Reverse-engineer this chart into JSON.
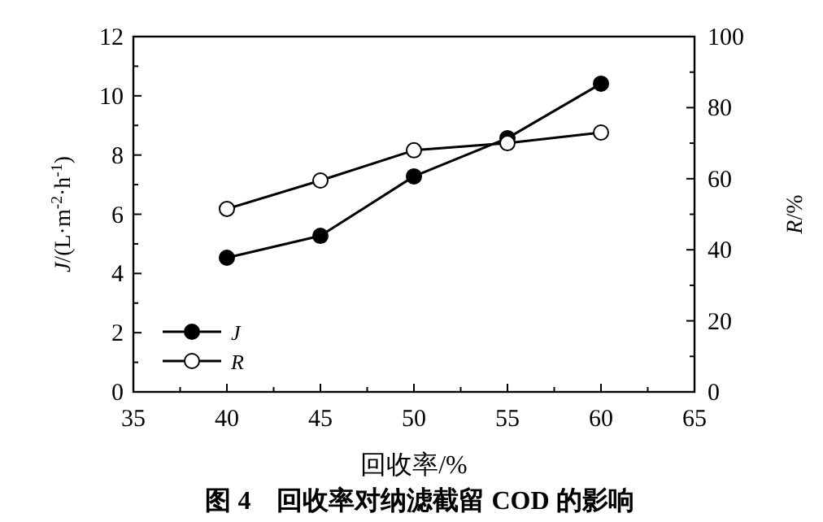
{
  "chart_data": {
    "type": "line",
    "title": "图 4　回收率对纳滤截留 COD 的影响",
    "xlabel": "回收率/%",
    "ylabel": "*J*/(L·m$^{-2}$·h$^{-1}$)",
    "y2label": "*R*/%",
    "x": [
      40,
      45,
      50,
      55,
      60
    ],
    "series": [
      {
        "name": "J",
        "color": "#000000",
        "marker": "circle",
        "values": [
          4.53,
          5.27,
          7.28,
          8.57,
          10.41
        ]
      },
      {
        "name": "R",
        "color": "#000000",
        "marker": "circle",
        "axis": "y2",
        "values": [
          51.5,
          59.5,
          68,
          70,
          73
        ]
      }
    ],
    "xlim": [
      35,
      65
    ],
    "xticks": [
      35,
      40,
      45,
      50,
      55,
      60,
      65
    ],
    "ylim": [
      0,
      12
    ],
    "yticks": [
      0,
      2,
      4,
      6,
      8,
      10,
      12
    ],
    "y2lim": [
      0,
      100
    ],
    "y2ticks": [
      0,
      20,
      40,
      60,
      80,
      100
    ],
    "grid": false,
    "legend": "bottom left",
    "line_style": "solid"
  }
}
